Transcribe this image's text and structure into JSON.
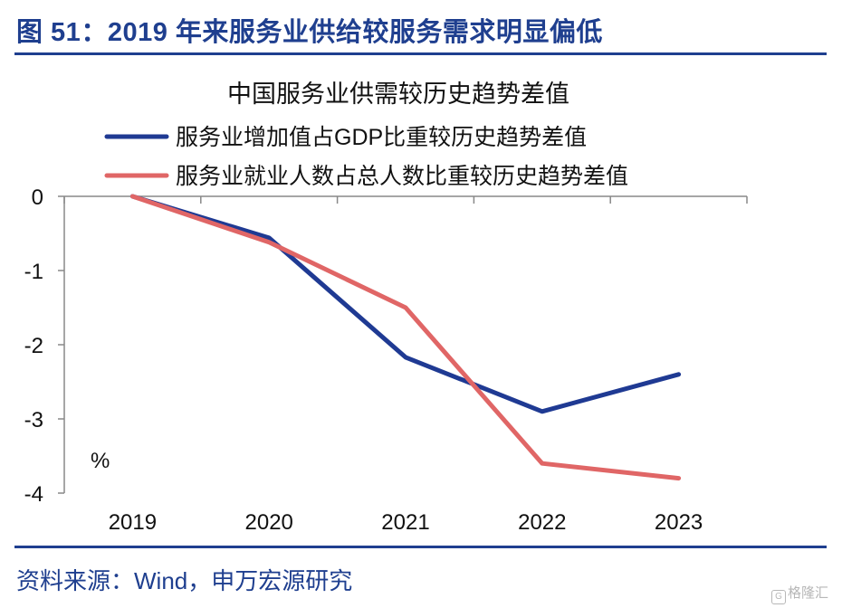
{
  "figure_title": "图 51：2019 年来服务业供给较服务需求明显偏低",
  "source_note": "资料来源：Wind，申万宏源研究",
  "watermark": "格隆汇",
  "watermark_glyph": "G",
  "chart_data": {
    "type": "line",
    "title": "中国服务业供需较历史趋势差值",
    "ylabel": "%",
    "xlabel": "",
    "categories": [
      "2019",
      "2020",
      "2021",
      "2022",
      "2023"
    ],
    "ylim": [
      -4,
      0
    ],
    "yticks": [
      0,
      -1,
      -2,
      -3,
      -4
    ],
    "grid": false,
    "legend_position": "top",
    "series": [
      {
        "name": "服务业增加值占GDP比重较历史趋势差值",
        "color": "#1f3a93",
        "values": [
          0,
          -0.56,
          -2.17,
          -2.9,
          -2.4
        ]
      },
      {
        "name": "服务业就业人数占总人数比重较历史趋势差值",
        "color": "#e06666",
        "values": [
          0,
          -0.62,
          -1.5,
          -3.6,
          -3.8
        ]
      }
    ]
  }
}
